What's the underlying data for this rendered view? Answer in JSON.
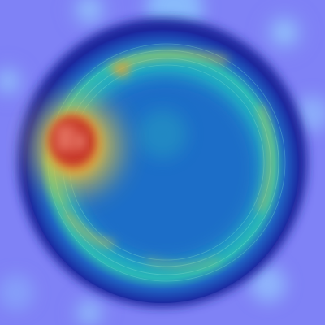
{
  "image": {
    "subject": "circular-dish-heatmap-overlay",
    "colormap": "jet",
    "background_color": "#7f82f6",
    "dish_rim_color": "#1d2fa8",
    "dish_fill_color": "#1f66c6",
    "hotspot_color": "#cf3a2a",
    "ring_color": "#1fb9bf",
    "accent_color": "#e6c437"
  }
}
